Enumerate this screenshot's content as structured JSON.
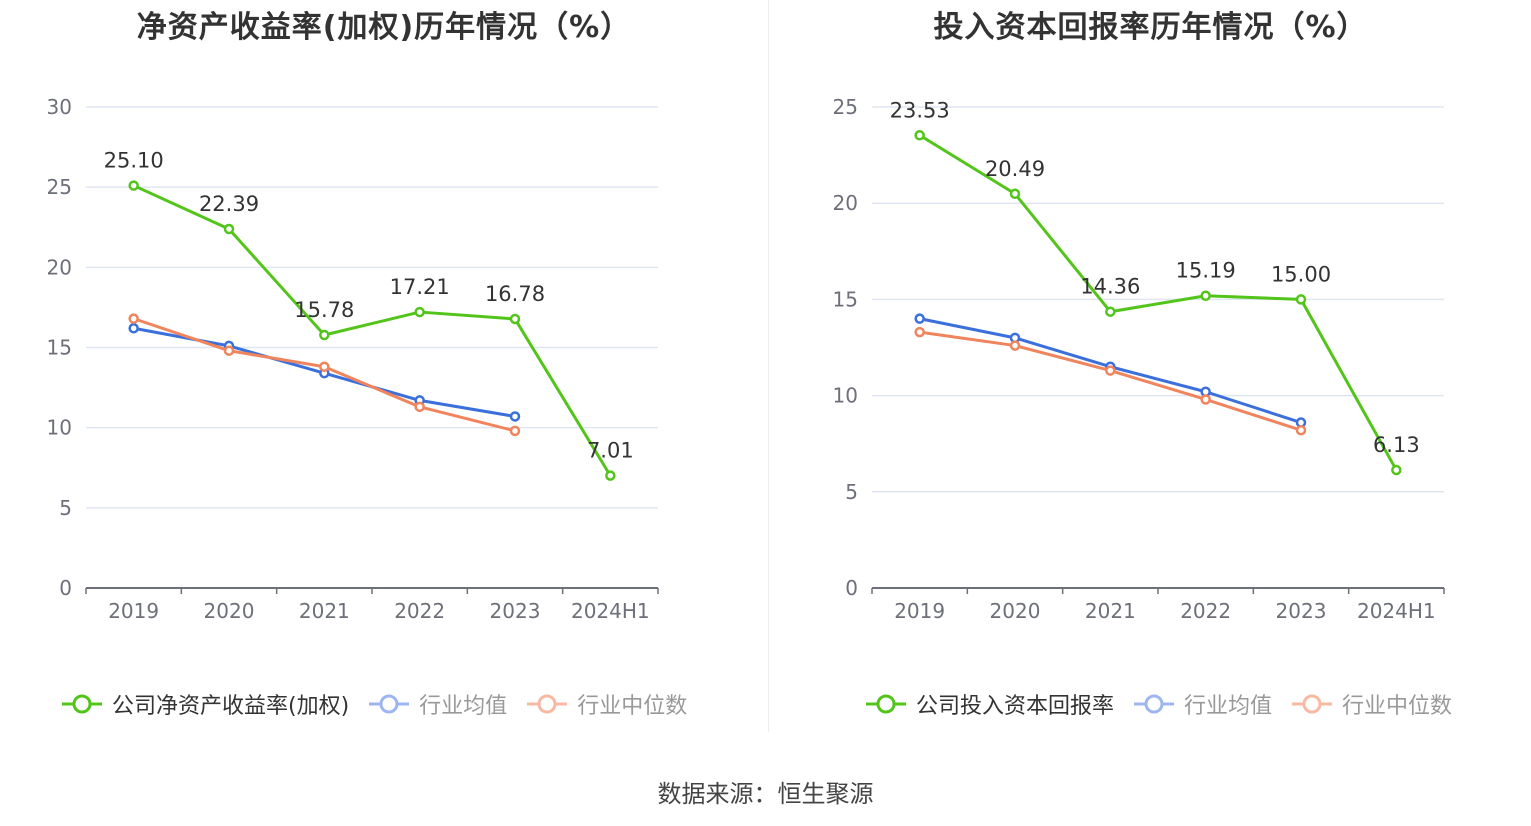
{
  "footer": "数据来源：恒生聚源",
  "chart_data": [
    {
      "type": "line",
      "title": "净资产收益率(加权)历年情况（%）",
      "categories": [
        "2019",
        "2020",
        "2021",
        "2022",
        "2023",
        "2024H1"
      ],
      "ylim": [
        0,
        30
      ],
      "yticks": [
        0,
        5,
        10,
        15,
        20,
        25,
        30
      ],
      "grid": true,
      "legend_position": "bottom-left",
      "series": [
        {
          "name": "公司净资产收益率(加权)",
          "color": "#52c41a",
          "values": [
            25.1,
            22.39,
            15.78,
            17.21,
            16.78,
            7.01
          ],
          "labels": [
            "25.10",
            "22.39",
            "15.78",
            "17.21",
            "16.78",
            "7.01"
          ]
        },
        {
          "name": "行业均值",
          "color": "#3b6fdc",
          "values": [
            16.2,
            15.1,
            13.4,
            11.7,
            10.7,
            null
          ]
        },
        {
          "name": "行业中位数",
          "color": "#f0845c",
          "values": [
            16.8,
            14.8,
            13.8,
            11.3,
            9.8,
            null
          ]
        }
      ]
    },
    {
      "type": "line",
      "title": "投入资本回报率历年情况（%）",
      "categories": [
        "2019",
        "2020",
        "2021",
        "2022",
        "2023",
        "2024H1"
      ],
      "ylim": [
        0,
        25
      ],
      "yticks": [
        0,
        5,
        10,
        15,
        20,
        25
      ],
      "grid": true,
      "legend_position": "bottom-left",
      "series": [
        {
          "name": "公司投入资本回报率",
          "color": "#52c41a",
          "values": [
            23.53,
            20.49,
            14.36,
            15.19,
            15.0,
            6.13
          ],
          "labels": [
            "23.53",
            "20.49",
            "14.36",
            "15.19",
            "15.00",
            "6.13"
          ]
        },
        {
          "name": "行业均值",
          "color": "#3b6fdc",
          "values": [
            14.0,
            13.0,
            11.5,
            10.2,
            8.6,
            null
          ]
        },
        {
          "name": "行业中位数",
          "color": "#f0845c",
          "values": [
            13.3,
            12.6,
            11.3,
            9.8,
            8.2,
            null
          ]
        }
      ]
    }
  ]
}
